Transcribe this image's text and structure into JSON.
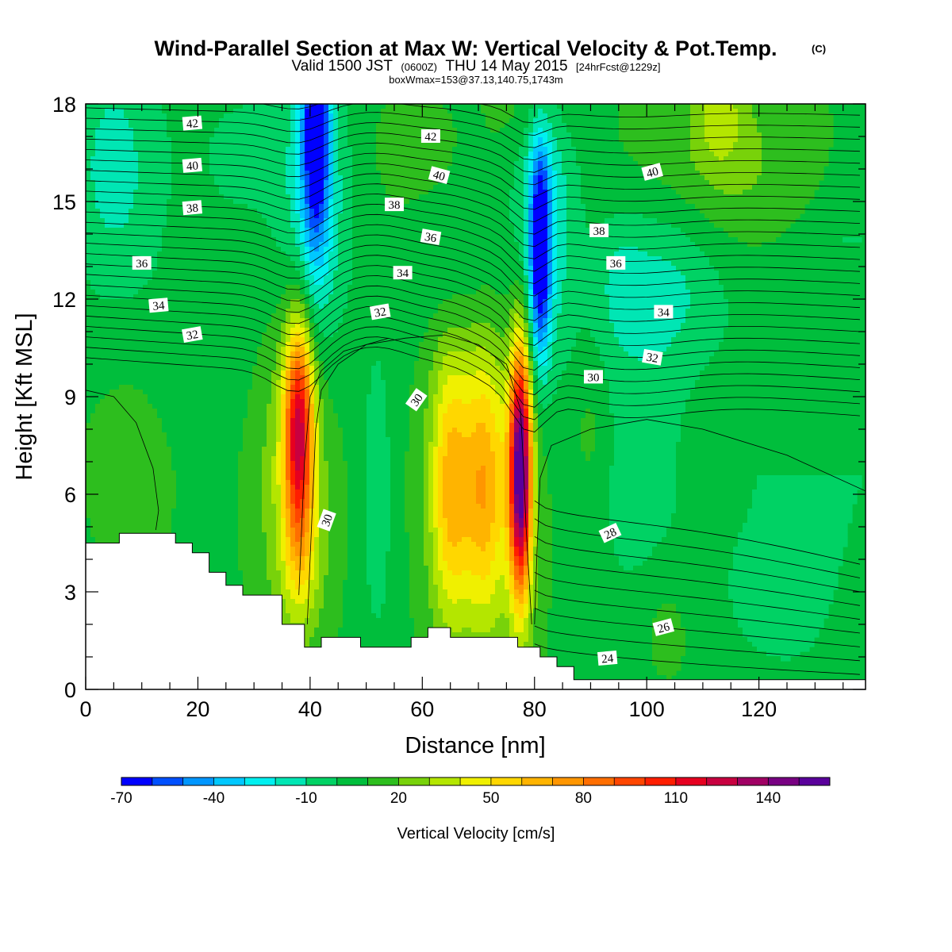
{
  "header": {
    "title": "Wind-Parallel Section at Max W: Vertical Velocity & Pot.Temp.",
    "title_mark": "(C)",
    "valid_prefix": "Valid 1500 JST",
    "valid_utc": "(0600Z)",
    "valid_date": "THU 14 May 2015",
    "forecast": "[24hrFcst@1229z]",
    "box_info": "boxWmax=153@37.13,140.75,1743m"
  },
  "chart_data": {
    "type": "heatmap",
    "xlabel": "Distance [nm]",
    "ylabel": "Height [Kft MSL]",
    "xlim": [
      0,
      139
    ],
    "ylim": [
      0,
      18
    ],
    "x_ticks": [
      "0",
      "20",
      "40",
      "60",
      "80",
      "100",
      "120"
    ],
    "y_ticks": [
      "0",
      "3",
      "6",
      "9",
      "12",
      "15",
      "18"
    ],
    "colorbar": {
      "title": "Vertical Velocity [cm/s]",
      "min": -70,
      "max": 155,
      "step": 10,
      "tick_labels": [
        "-70",
        "-40",
        "-10",
        "20",
        "50",
        "80",
        "110",
        "140"
      ],
      "colors": [
        "#0000ff",
        "#0050ff",
        "#0096ff",
        "#00c8ff",
        "#00f0f0",
        "#00e6b4",
        "#00d264",
        "#00be3c",
        "#2dbe1e",
        "#78d20a",
        "#b4e600",
        "#f0f000",
        "#ffd700",
        "#ffb400",
        "#ff9600",
        "#ff6e00",
        "#ff4600",
        "#ff1e00",
        "#e60020",
        "#c80040",
        "#a00064",
        "#780082",
        "#5a009b"
      ]
    },
    "updraft_cores": [
      {
        "x": 38,
        "z": 8.0,
        "w_max": 110
      },
      {
        "x": 65,
        "z": 6.5,
        "w_max": 55
      },
      {
        "x": 71,
        "z": 6.5,
        "w_max": 55
      },
      {
        "x": 77.5,
        "z": 6.8,
        "w_max": 153
      }
    ],
    "downdraft_cores": [
      {
        "x": 41,
        "z": 17.5,
        "w_min": -60
      },
      {
        "x": 81,
        "z": 13.0,
        "w_min": -60
      }
    ],
    "terrain": {
      "x": [
        0,
        6,
        6,
        16,
        16,
        19,
        19,
        22,
        22,
        25,
        25,
        28,
        28,
        35,
        35,
        39,
        39,
        42,
        42,
        49,
        49,
        58,
        58,
        61,
        61,
        65,
        65,
        77,
        77,
        81,
        81,
        84,
        84,
        87,
        87,
        90,
        90,
        139
      ],
      "z": [
        4.5,
        4.5,
        4.8,
        4.8,
        4.5,
        4.5,
        4.2,
        4.2,
        3.6,
        3.6,
        3.2,
        3.2,
        2.9,
        2.9,
        2.0,
        2.0,
        1.3,
        1.3,
        1.6,
        1.6,
        1.3,
        1.3,
        1.6,
        1.6,
        1.9,
        1.9,
        1.6,
        1.6,
        1.3,
        1.3,
        1.0,
        1.0,
        0.7,
        0.7,
        0.3,
        0.3,
        0.3,
        0.3
      ]
    },
    "isentrope_labels": [
      {
        "text": "42",
        "x": 19,
        "z": 17.4,
        "angle": -5
      },
      {
        "text": "40",
        "x": 19,
        "z": 16.1,
        "angle": -5
      },
      {
        "text": "38",
        "x": 19,
        "z": 14.8,
        "angle": -5
      },
      {
        "text": "36",
        "x": 10,
        "z": 13.1,
        "angle": 0
      },
      {
        "text": "34",
        "x": 13,
        "z": 11.8,
        "angle": -5
      },
      {
        "text": "32",
        "x": 19,
        "z": 10.9,
        "angle": -10
      },
      {
        "text": "42",
        "x": 61.5,
        "z": 17.0,
        "angle": 0
      },
      {
        "text": "40",
        "x": 63,
        "z": 15.8,
        "angle": 15
      },
      {
        "text": "38",
        "x": 55,
        "z": 14.9,
        "angle": 0
      },
      {
        "text": "36",
        "x": 61.5,
        "z": 13.9,
        "angle": 10
      },
      {
        "text": "34",
        "x": 56.5,
        "z": 12.8,
        "angle": 0
      },
      {
        "text": "32",
        "x": 52.5,
        "z": 11.6,
        "angle": -10
      },
      {
        "text": "30",
        "x": 59,
        "z": 8.9,
        "angle": -55
      },
      {
        "text": "30",
        "x": 43,
        "z": 5.2,
        "angle": -70
      },
      {
        "text": "40",
        "x": 101,
        "z": 15.9,
        "angle": -15
      },
      {
        "text": "38",
        "x": 91.5,
        "z": 14.1,
        "angle": 0
      },
      {
        "text": "36",
        "x": 94.5,
        "z": 13.1,
        "angle": 0
      },
      {
        "text": "34",
        "x": 103,
        "z": 11.6,
        "angle": 0
      },
      {
        "text": "32",
        "x": 101,
        "z": 10.2,
        "angle": 10
      },
      {
        "text": "30",
        "x": 90.5,
        "z": 9.6,
        "angle": 0
      },
      {
        "text": "28",
        "x": 93.5,
        "z": 4.8,
        "angle": -25
      },
      {
        "text": "26",
        "x": 103,
        "z": 1.9,
        "angle": -15
      },
      {
        "text": "24",
        "x": 93,
        "z": 0.95,
        "angle": -5
      }
    ]
  }
}
